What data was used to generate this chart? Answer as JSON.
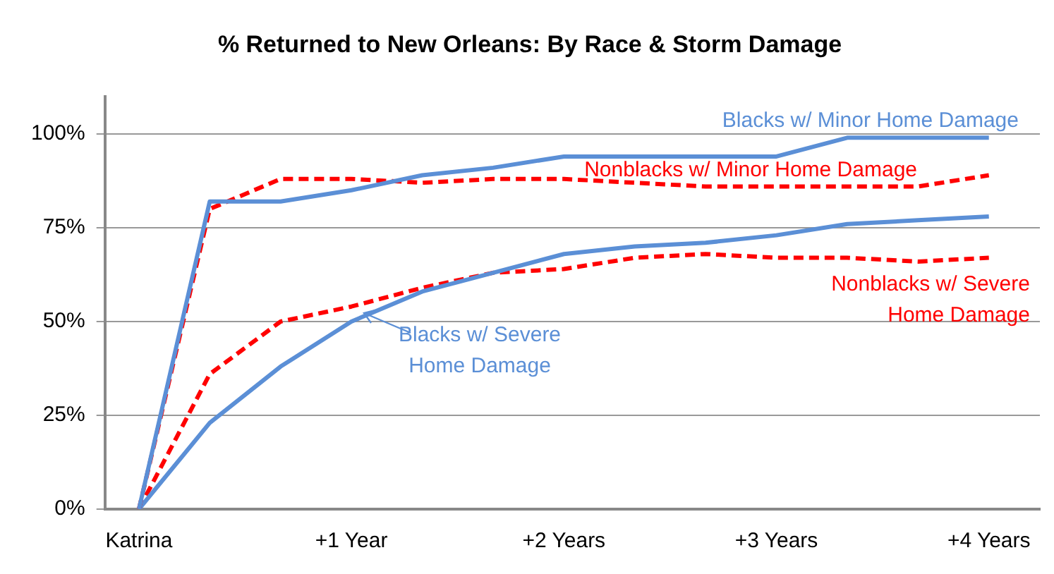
{
  "chart_data": {
    "type": "line",
    "title": "% Returned to New Orleans: By Race & Storm Damage",
    "x": [
      0,
      0.3333,
      0.6667,
      1,
      1.3333,
      1.6667,
      2,
      2.3333,
      2.6667,
      3,
      3.3333,
      3.6667,
      4
    ],
    "xlim": [
      -0.16,
      4.24
    ],
    "xticks": [
      {
        "value": 0,
        "label": "Katrina"
      },
      {
        "value": 1,
        "label": "+1 Year"
      },
      {
        "value": 2,
        "label": "+2 Years"
      },
      {
        "value": 3,
        "label": "+3 Years"
      },
      {
        "value": 4,
        "label": "+4 Years"
      }
    ],
    "ylim": [
      0,
      110
    ],
    "yticks": [
      {
        "value": 0,
        "label": "0%"
      },
      {
        "value": 25,
        "label": "25%"
      },
      {
        "value": 50,
        "label": "50%"
      },
      {
        "value": 75,
        "label": "75%"
      },
      {
        "value": 100,
        "label": "100%"
      }
    ],
    "grid": "y",
    "legend": false,
    "marker": "none",
    "series": [
      {
        "name": "Blacks w/ Minor Home Damage",
        "color": "#5b8fd6",
        "line_style": "solid",
        "values": [
          0,
          82,
          82,
          85,
          89,
          91,
          94,
          94,
          94,
          94,
          99,
          99,
          99
        ]
      },
      {
        "name": "Nonblacks w/ Minor Home Damage",
        "color": "#ff0000",
        "line_style": "dashed",
        "values": [
          0,
          80,
          88,
          88,
          87,
          88,
          88,
          87,
          86,
          86,
          86,
          86,
          89
        ]
      },
      {
        "name": "Blacks w/ Severe Home Damage",
        "color": "#5b8fd6",
        "line_style": "solid",
        "values": [
          0,
          23,
          38,
          50,
          58,
          63,
          68,
          70,
          71,
          73,
          76,
          77,
          78
        ]
      },
      {
        "name": "Nonblacks w/ Severe Home Damage",
        "color": "#ff0000",
        "line_style": "dashed",
        "values": [
          0,
          36,
          50,
          54,
          59,
          63,
          64,
          67,
          68,
          67,
          67,
          66,
          67
        ]
      }
    ]
  }
}
